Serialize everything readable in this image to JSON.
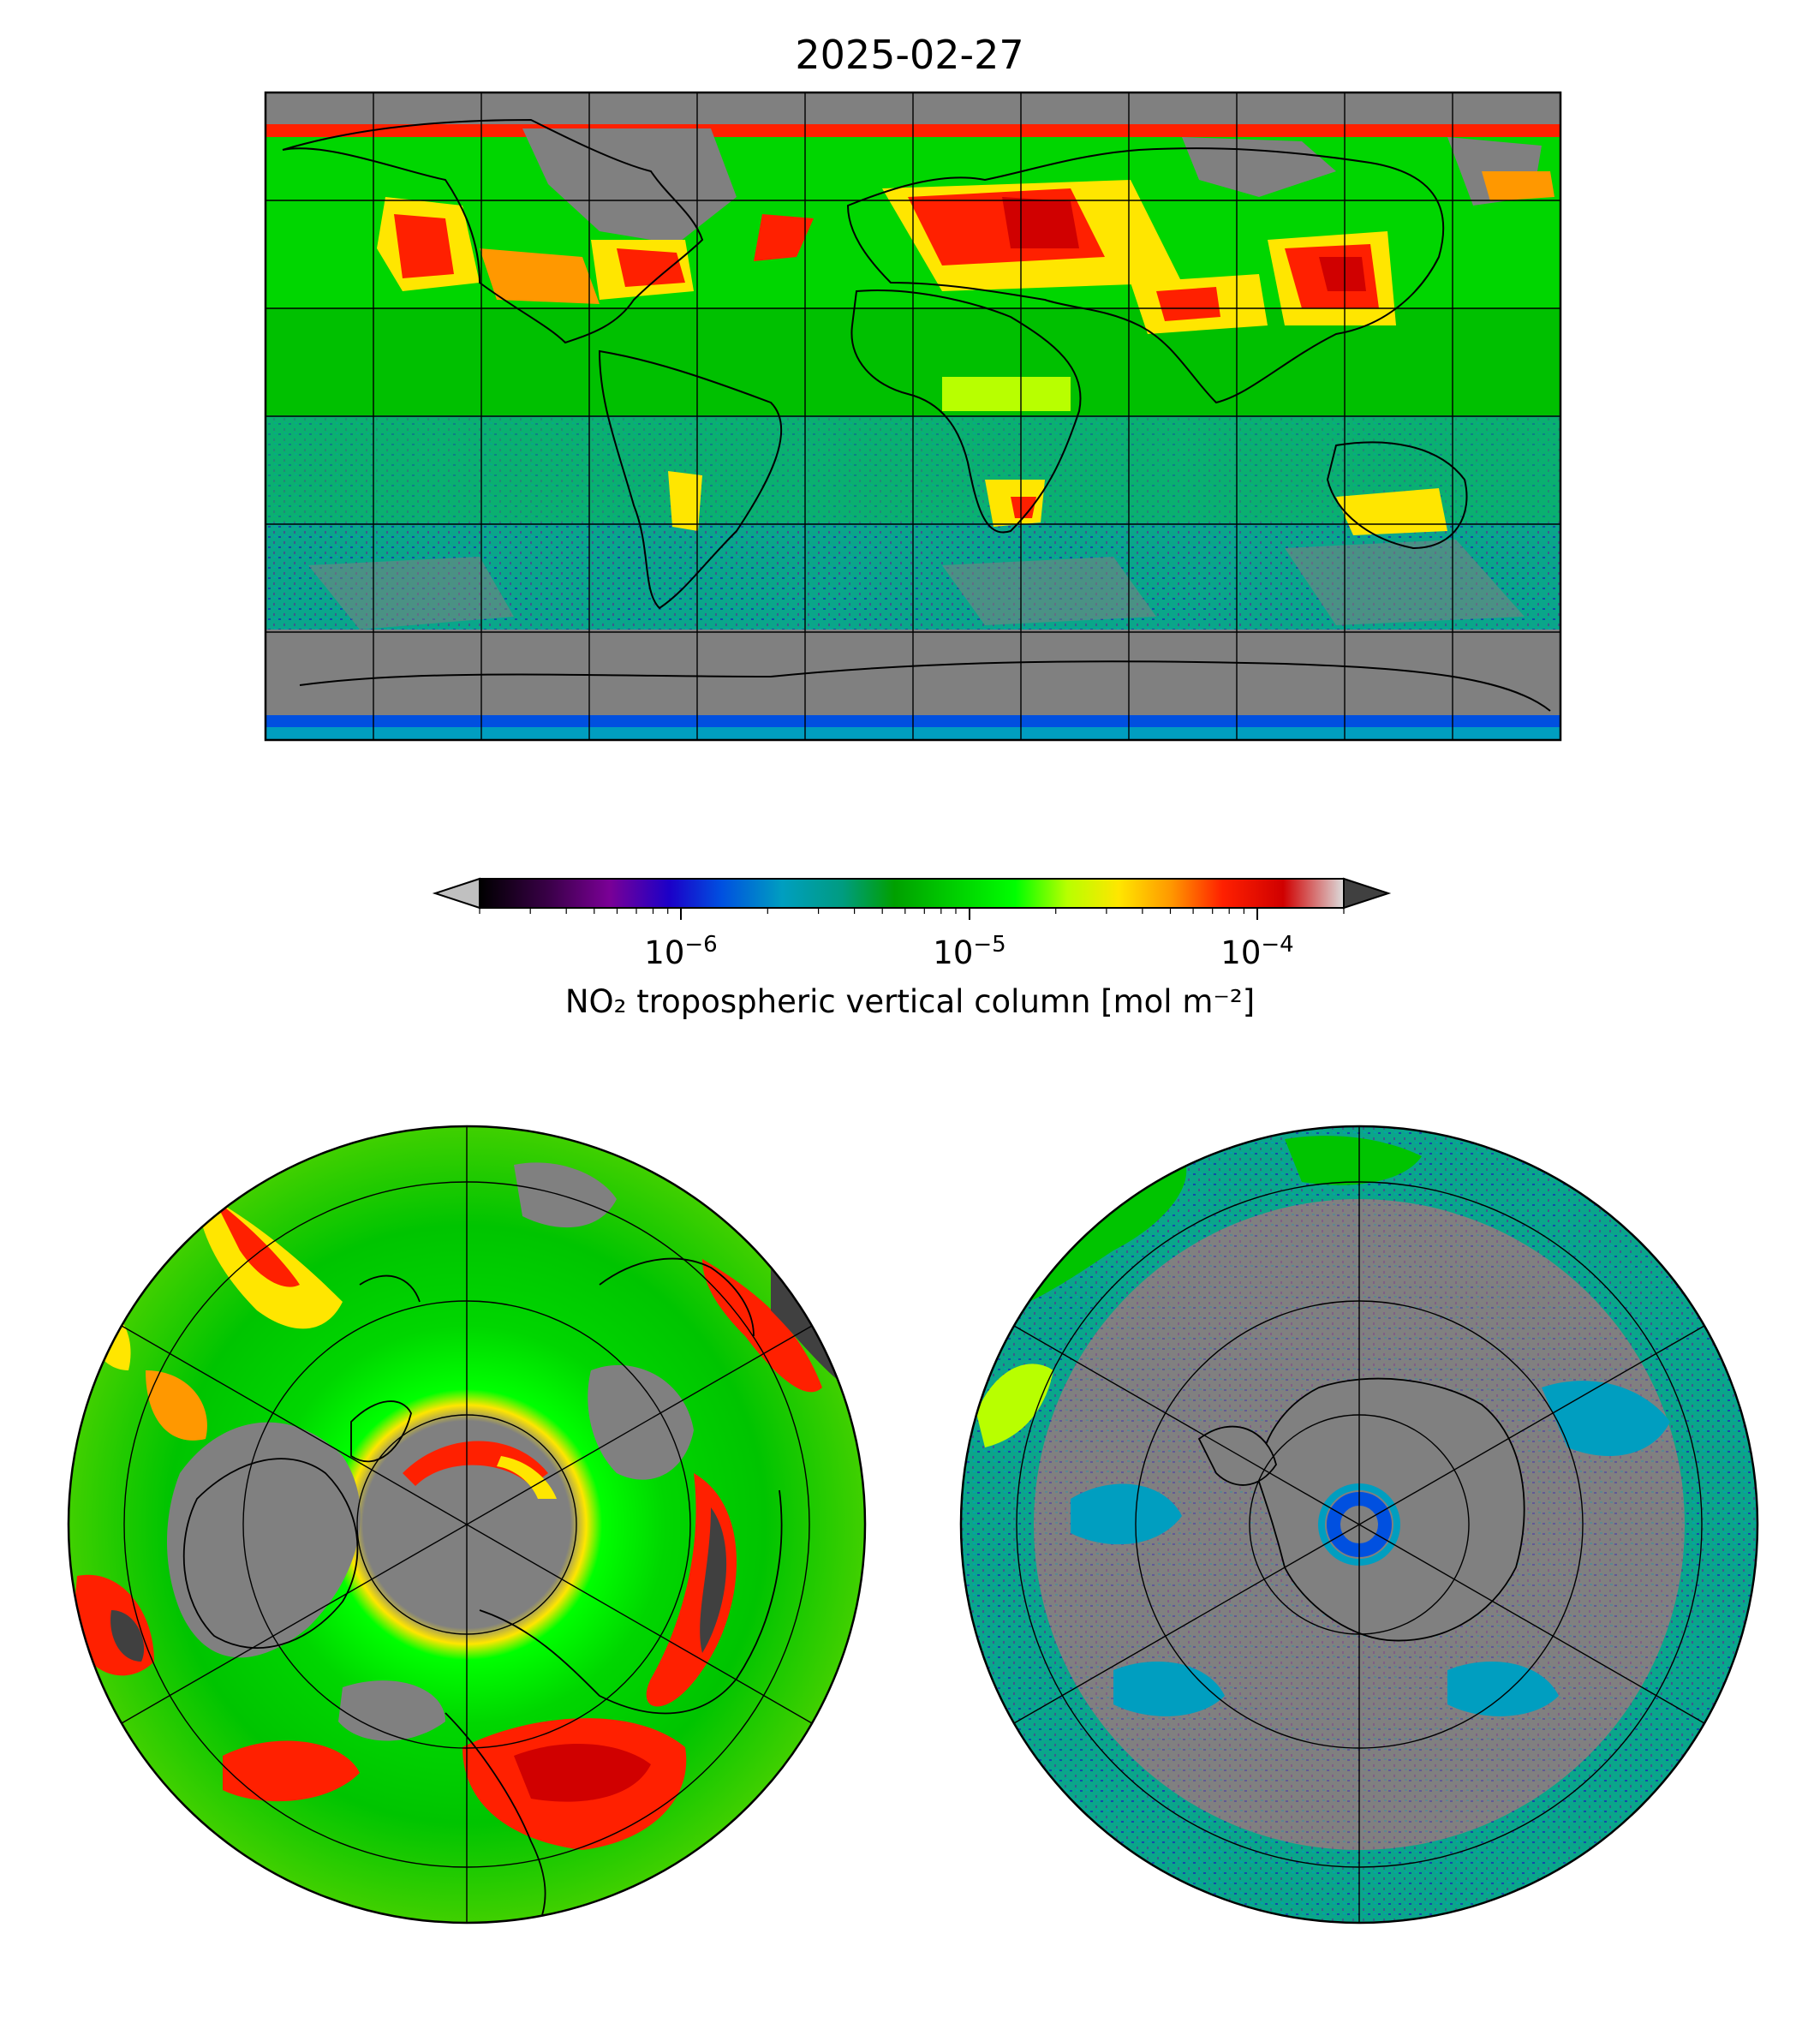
{
  "figure": {
    "title": "2025-02-27"
  },
  "colorbar": {
    "label": "NO₂ tropospheric vertical column [mol m⁻²]",
    "scale": "log",
    "range": [
      2e-07,
      0.0002
    ],
    "extend": "both",
    "under_color": "#c0c0c0",
    "over_color": "#404040",
    "ticks": [
      {
        "base": "10",
        "exp": "−6",
        "value": 1e-06
      },
      {
        "base": "10",
        "exp": "−5",
        "value": 1e-05
      },
      {
        "base": "10",
        "exp": "−4",
        "value": 0.0001
      }
    ],
    "colors": [
      "#000000",
      "#3a0048",
      "#7a0096",
      "#1b00c8",
      "#0050e0",
      "#009ec0",
      "#009c80",
      "#00a000",
      "#00d600",
      "#00ff00",
      "#b8ff00",
      "#ffe600",
      "#ff9800",
      "#ff2000",
      "#d00000",
      "#dcdcdc"
    ]
  },
  "colors": {
    "no_data": "#808080",
    "gridline": "#000000",
    "coastline": "#000000"
  },
  "maps": [
    {
      "name": "global",
      "projection": "PlateCarree"
    },
    {
      "name": "north-pole",
      "projection": "NorthPolarStereo"
    },
    {
      "name": "south-pole",
      "projection": "SouthPolarStereo"
    }
  ]
}
